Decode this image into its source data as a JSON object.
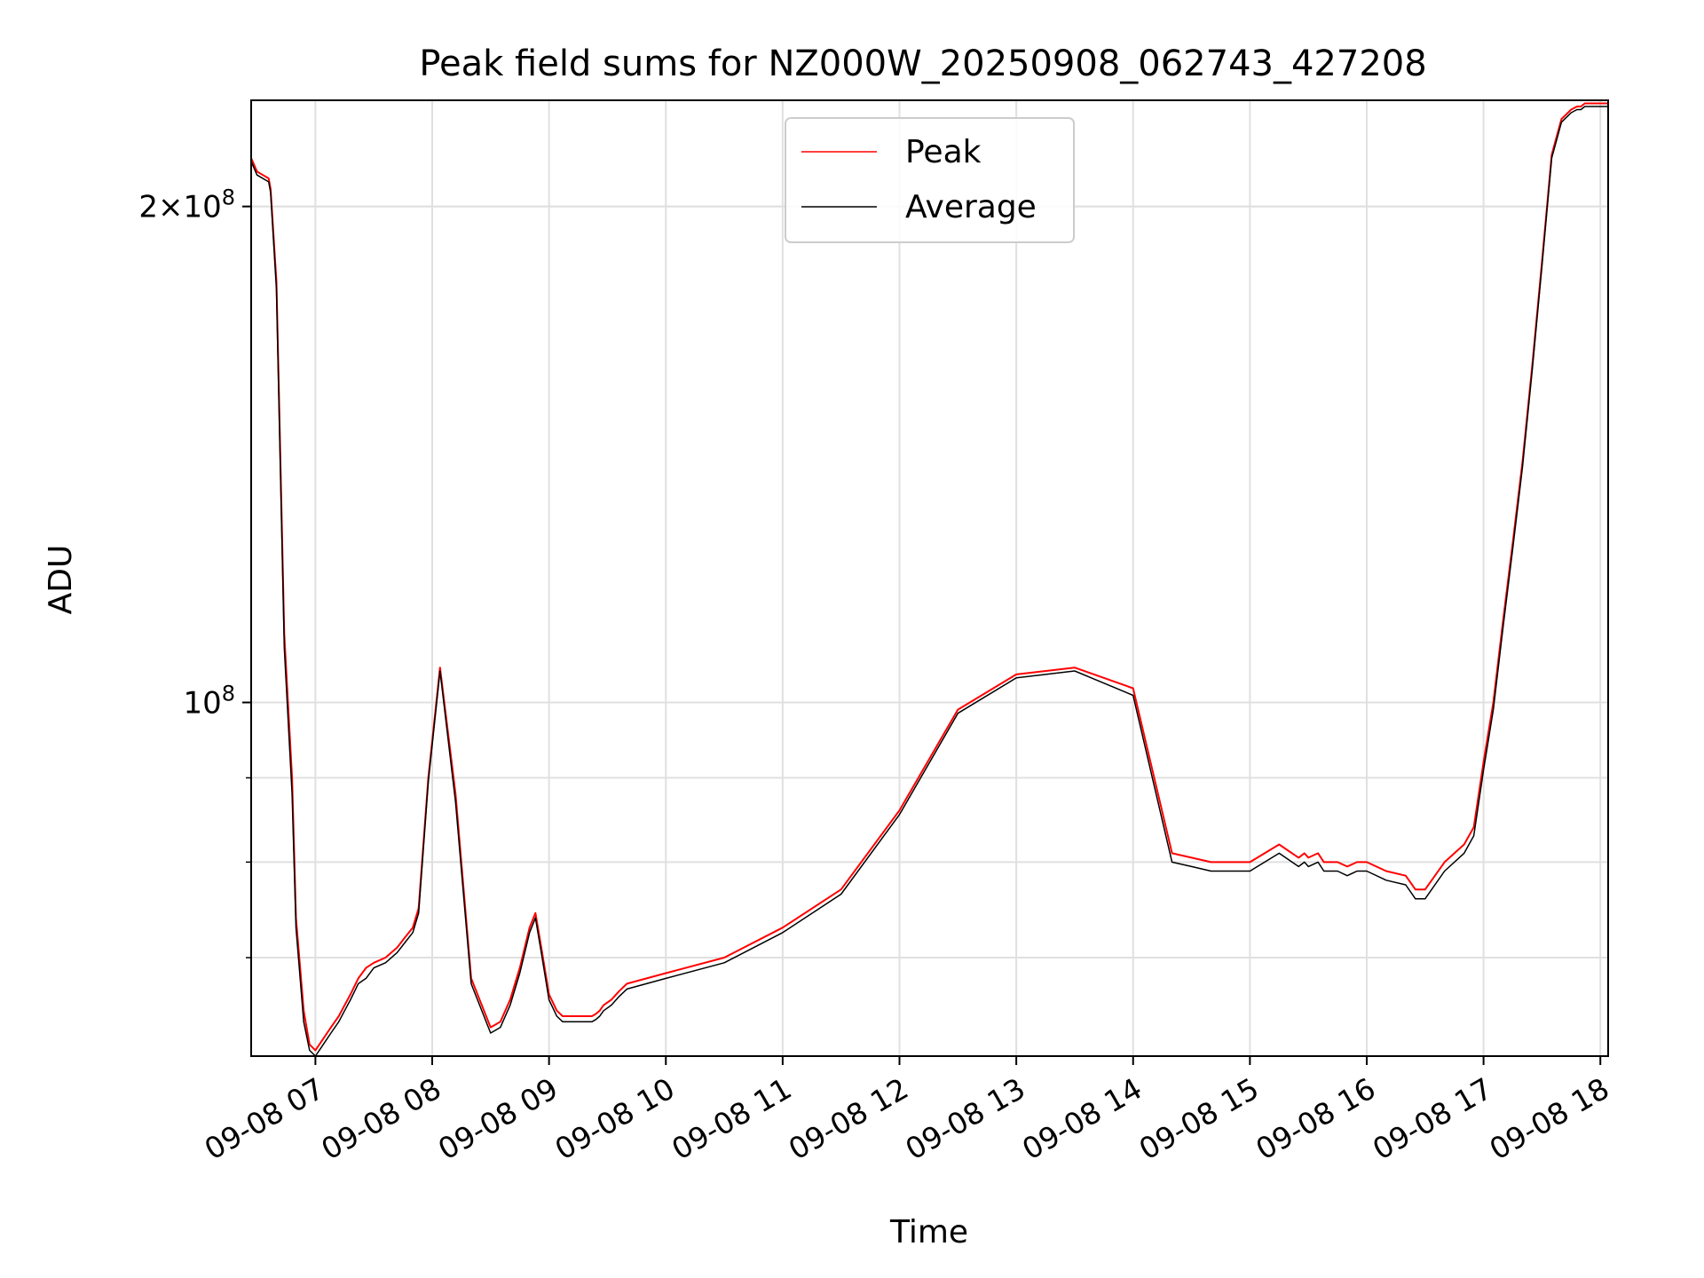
{
  "colors": {
    "peak": "#ff0000",
    "average": "#000000",
    "grid": "#e0e0e0",
    "axis": "#000000"
  },
  "chart_data": {
    "type": "line",
    "title": "Peak field sums for NZ000W_20250908_062743_427208",
    "xlabel": "Time",
    "ylabel": "ADU",
    "yscale": "log",
    "grid": true,
    "legend": {
      "placement": "upper center",
      "entries": [
        "Peak",
        "Average"
      ]
    },
    "xlim": [
      "2025-09-08 06:27",
      "2025-09-08 18:04"
    ],
    "ylim": [
      61000000,
      232000000
    ],
    "x_tick_labels": [
      "09-08 07",
      "09-08 08",
      "09-08 09",
      "09-08 10",
      "09-08 11",
      "09-08 12",
      "09-08 13",
      "09-08 14",
      "09-08 15",
      "09-08 16",
      "09-08 17",
      "09-08 18"
    ],
    "y_ticks": [
      {
        "value": 100000000,
        "base": "10",
        "exp": "8",
        "coef": ""
      },
      {
        "value": 200000000,
        "base": "10",
        "exp": "8",
        "coef": "2"
      }
    ],
    "x": [
      "06:27",
      "06:30",
      "06:36",
      "06:37",
      "06:40",
      "06:44",
      "06:48",
      "06:50",
      "06:54",
      "06:57",
      "07:00",
      "07:04",
      "07:08",
      "07:12",
      "07:15",
      "07:18",
      "07:22",
      "07:26",
      "07:30",
      "07:36",
      "07:42",
      "07:46",
      "07:50",
      "07:53",
      "07:58",
      "08:04",
      "08:12",
      "08:20",
      "08:30",
      "08:35",
      "08:40",
      "08:45",
      "08:50",
      "08:53",
      "08:56",
      "09:00",
      "09:04",
      "09:07",
      "09:09",
      "09:13",
      "09:17",
      "09:20",
      "09:22",
      "09:24",
      "09:26",
      "09:28",
      "09:32",
      "09:36",
      "09:40",
      "10:00",
      "10:30",
      "11:00",
      "11:30",
      "12:00",
      "12:30",
      "13:00",
      "13:30",
      "14:00",
      "14:20",
      "14:30",
      "14:40",
      "14:50",
      "15:00",
      "15:15",
      "15:25",
      "15:28",
      "15:30",
      "15:35",
      "15:38",
      "15:42",
      "15:45",
      "15:50",
      "15:55",
      "16:00",
      "16:10",
      "16:20",
      "16:25",
      "16:30",
      "16:40",
      "16:50",
      "16:55",
      "17:00",
      "17:05",
      "17:10",
      "17:15",
      "17:20",
      "17:25",
      "17:30",
      "17:35",
      "17:40",
      "17:45",
      "17:48",
      "17:50",
      "17:52",
      "17:55",
      "17:58",
      "18:04"
    ],
    "series": [
      {
        "name": "Peak",
        "values": [
          214,
          210,
          208,
          205,
          180,
          110,
          90,
          74,
          65,
          62,
          61.5,
          62.5,
          63.5,
          64.5,
          65.5,
          66.5,
          68,
          69,
          69.5,
          70,
          71,
          72,
          73,
          75,
          90,
          105,
          88,
          68,
          63.5,
          64,
          66,
          69,
          73,
          74.5,
          71,
          66.5,
          65,
          64.5,
          64.5,
          64.5,
          64.5,
          64.5,
          64.5,
          64.7,
          65,
          65.5,
          66,
          66.8,
          67.5,
          68.5,
          70,
          73,
          77,
          86,
          99,
          104,
          105,
          102,
          81,
          80.5,
          80,
          80,
          80,
          82,
          80.5,
          81,
          80.5,
          81,
          80,
          80,
          80,
          79.5,
          80,
          80,
          79,
          78.5,
          77,
          77,
          80,
          82,
          84,
          92,
          100,
          112,
          125,
          140,
          160,
          185,
          215,
          226,
          229,
          230,
          230,
          231,
          231,
          231,
          231
        ]
      },
      {
        "name": "Average",
        "values": [
          213,
          209,
          207,
          204,
          178,
          108,
          88,
          73,
          64,
          61.5,
          61,
          62,
          63,
          64,
          65,
          66,
          67.5,
          68,
          69,
          69.5,
          70.5,
          71.5,
          72.5,
          74.5,
          89.5,
          104.5,
          87,
          67.5,
          63,
          63.5,
          65.5,
          68.5,
          72.5,
          74,
          70.5,
          66,
          64.5,
          64,
          64,
          64,
          64,
          64,
          64,
          64.2,
          64.5,
          65,
          65.5,
          66.3,
          67,
          68,
          69.5,
          72.5,
          76.5,
          85.5,
          98.5,
          103.5,
          104.5,
          101,
          80,
          79.5,
          79,
          79,
          79,
          81,
          79.5,
          80,
          79.5,
          80,
          79,
          79,
          79,
          78.5,
          79,
          79,
          78,
          77.5,
          76,
          76,
          79,
          81,
          83,
          91,
          99,
          111,
          124,
          139,
          159,
          184,
          214,
          225,
          228,
          229,
          229,
          230,
          230,
          230,
          230
        ]
      }
    ]
  }
}
